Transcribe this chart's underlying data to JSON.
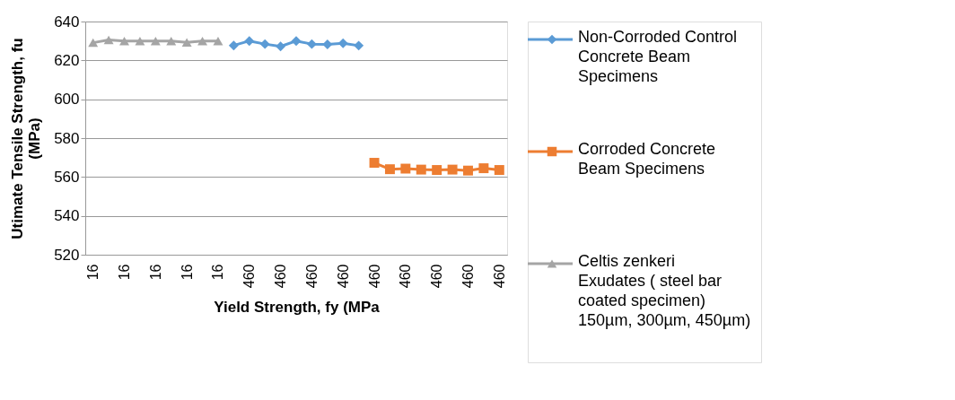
{
  "chart_data": {
    "type": "line",
    "xlabel": "Yield Strength, fy (MPa",
    "ylabel": "Utimate Tensile Strength, fu (MPa)",
    "categories": [
      "16",
      null,
      "16",
      null,
      "16",
      null,
      "16",
      null,
      "16",
      null,
      "460",
      null,
      "460",
      null,
      "460",
      null,
      "460",
      null,
      "460",
      null,
      "460",
      null,
      "460",
      null,
      "460",
      null,
      "460"
    ],
    "ylim": [
      520,
      640
    ],
    "yticks": [
      520,
      540,
      560,
      580,
      600,
      620,
      640
    ],
    "grid": "y",
    "legend": "right",
    "line_style": "solid",
    "series": [
      {
        "name": "Non-Corroded Control Concrete Beam Specimens",
        "color": "#5b9bd5",
        "marker": "diamond",
        "values": [
          null,
          null,
          null,
          null,
          null,
          null,
          null,
          null,
          null,
          627.7,
          630,
          628.4,
          627.2,
          630,
          628.4,
          628.2,
          628.8,
          627.6,
          null,
          null,
          null,
          null,
          null,
          null,
          null,
          null,
          null
        ]
      },
      {
        "name": "Corroded  Concrete Beam Specimens",
        "color": "#ed7d31",
        "marker": "square",
        "values": [
          null,
          null,
          null,
          null,
          null,
          null,
          null,
          null,
          null,
          null,
          null,
          null,
          null,
          null,
          null,
          null,
          null,
          null,
          567.3,
          564,
          564.3,
          563.8,
          563.6,
          563.8,
          563.3,
          564.5,
          563.6
        ]
      },
      {
        "name": "Celtis zenkeri   Exudates ( steel bar coated specimen) 150µm, 300µm, 450µm)",
        "color": "#a5a5a5",
        "marker": "triangle",
        "values": [
          629.1,
          630.5,
          630,
          630,
          630,
          630,
          629.3,
          630,
          630,
          null,
          null,
          null,
          null,
          null,
          null,
          null,
          null,
          null,
          null,
          null,
          null,
          null,
          null,
          null,
          null,
          null,
          null
        ]
      }
    ]
  }
}
